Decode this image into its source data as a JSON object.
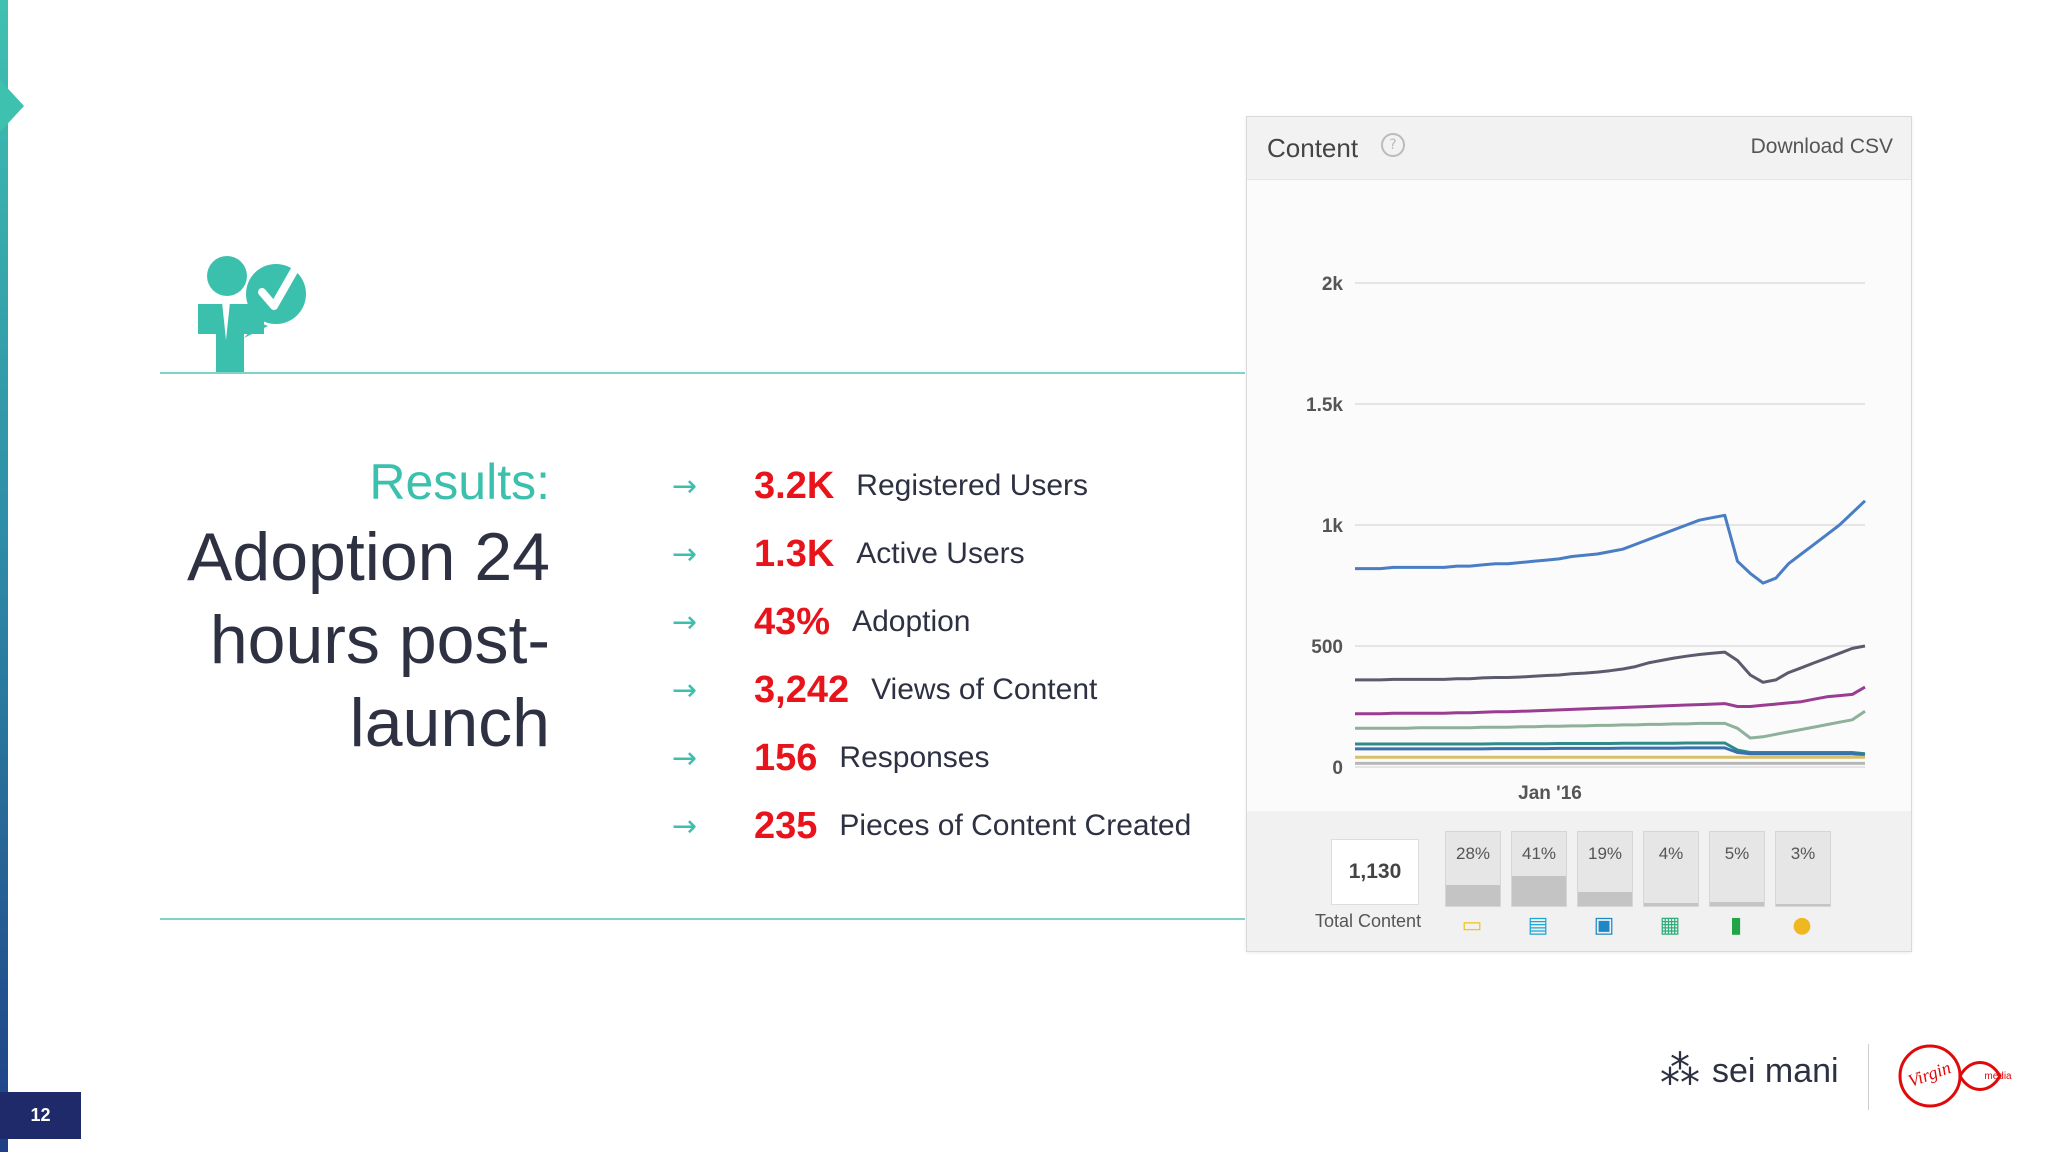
{
  "slide": {
    "page_number": "12",
    "results_label": "Results:",
    "title": "Adoption 24 hours post-launch",
    "colors": {
      "accent": "#3cc0ae",
      "value_red": "#e8141b",
      "text_dark": "#2d3142",
      "page_badge": "#1f2a6b"
    }
  },
  "stats": [
    {
      "value": "3.2K",
      "label": "Registered Users"
    },
    {
      "value": "1.3K",
      "label": "Active Users"
    },
    {
      "value": "43%",
      "label": "Adoption"
    },
    {
      "value": "3,242",
      "label": "Views of Content"
    },
    {
      "value": "156",
      "label": "Responses"
    },
    {
      "value": "235",
      "label": "Pieces of Content Created"
    }
  ],
  "chart_panel": {
    "title": "Content",
    "download_label": "Download CSV",
    "total_value": "1,130",
    "total_label": "Total Content",
    "breakdown": [
      {
        "pct": "28%",
        "value": 28,
        "icon": "clipboard-icon",
        "color": "#f3c614",
        "glyph": "▭"
      },
      {
        "pct": "41%",
        "value": 41,
        "icon": "document-icon",
        "color": "#1fa5d6",
        "glyph": "▤"
      },
      {
        "pct": "19%",
        "value": 19,
        "icon": "discussion-icon",
        "color": "#1e88c7",
        "glyph": "▣"
      },
      {
        "pct": "4%",
        "value": 4,
        "icon": "image-icon",
        "color": "#2fae7a",
        "glyph": "▦"
      },
      {
        "pct": "5%",
        "value": 5,
        "icon": "poll-icon",
        "color": "#23a547",
        "glyph": "▮"
      },
      {
        "pct": "3%",
        "value": 3,
        "icon": "idea-icon",
        "color": "#f0b820",
        "glyph": "●"
      }
    ]
  },
  "chart_data": {
    "type": "line",
    "title": "Content",
    "xlabel": "",
    "ylabel": "",
    "x_tick_labels": [
      "Jan '16"
    ],
    "y_ticks": [
      0,
      500,
      1000,
      1500,
      2000
    ],
    "y_tick_labels": [
      "0",
      "500",
      "1k",
      "1.5k",
      "2k"
    ],
    "ylim": [
      0,
      2000
    ],
    "grid": true,
    "x": [
      0,
      1,
      2,
      3,
      4,
      5,
      6,
      7,
      8,
      9,
      10,
      11,
      12,
      13,
      14,
      15,
      16,
      17,
      18,
      19,
      20,
      21,
      22,
      23,
      24,
      25,
      26,
      27,
      28,
      29,
      30,
      31,
      32,
      33,
      34,
      35,
      36,
      37,
      38,
      39,
      40
    ],
    "series": [
      {
        "color": "#4a7ec4",
        "values": [
          820,
          820,
          820,
          825,
          825,
          825,
          825,
          825,
          830,
          830,
          835,
          840,
          840,
          845,
          850,
          855,
          860,
          870,
          875,
          880,
          890,
          900,
          920,
          940,
          960,
          980,
          1000,
          1020,
          1030,
          1040,
          850,
          800,
          760,
          780,
          840,
          880,
          920,
          960,
          1000,
          1050,
          1100
        ]
      },
      {
        "color": "#5b5b6e",
        "values": [
          360,
          360,
          360,
          362,
          362,
          362,
          362,
          362,
          365,
          365,
          368,
          370,
          370,
          372,
          375,
          378,
          380,
          385,
          388,
          392,
          398,
          405,
          415,
          430,
          440,
          450,
          458,
          465,
          470,
          475,
          440,
          380,
          350,
          360,
          390,
          410,
          430,
          450,
          470,
          490,
          500
        ]
      },
      {
        "color": "#9a3d92",
        "values": [
          220,
          220,
          220,
          222,
          222,
          222,
          222,
          222,
          224,
          224,
          226,
          228,
          228,
          230,
          232,
          234,
          236,
          238,
          240,
          242,
          244,
          246,
          248,
          250,
          252,
          254,
          256,
          258,
          260,
          262,
          250,
          250,
          255,
          260,
          265,
          270,
          280,
          290,
          295,
          300,
          330
        ]
      },
      {
        "color": "#8fb09a",
        "values": [
          160,
          160,
          160,
          160,
          160,
          162,
          162,
          162,
          162,
          162,
          164,
          164,
          164,
          166,
          166,
          168,
          168,
          170,
          170,
          172,
          172,
          174,
          174,
          176,
          176,
          178,
          178,
          180,
          180,
          180,
          160,
          120,
          125,
          135,
          145,
          155,
          165,
          175,
          185,
          195,
          230
        ]
      },
      {
        "color": "#2e8b8a",
        "values": [
          95,
          95,
          95,
          95,
          95,
          95,
          95,
          95,
          95,
          95,
          95,
          96,
          96,
          96,
          96,
          96,
          97,
          97,
          97,
          97,
          97,
          98,
          98,
          98,
          98,
          98,
          99,
          99,
          99,
          99,
          70,
          60,
          60,
          60,
          60,
          60,
          60,
          60,
          60,
          60,
          55
        ]
      },
      {
        "color": "#3a6fb0",
        "values": [
          75,
          75,
          75,
          75,
          75,
          75,
          75,
          75,
          75,
          75,
          75,
          76,
          76,
          76,
          76,
          76,
          77,
          77,
          77,
          77,
          77,
          78,
          78,
          78,
          78,
          78,
          79,
          79,
          79,
          79,
          60,
          55,
          55,
          55,
          55,
          55,
          55,
          55,
          55,
          55,
          50
        ]
      },
      {
        "color": "#d8c06a",
        "values": [
          40,
          40,
          40,
          40,
          40,
          40,
          40,
          40,
          40,
          40,
          40,
          40,
          40,
          40,
          40,
          40,
          40,
          40,
          40,
          40,
          40,
          40,
          40,
          40,
          40,
          40,
          40,
          40,
          40,
          40,
          40,
          40,
          40,
          40,
          40,
          40,
          40,
          40,
          40,
          40,
          40
        ]
      },
      {
        "color": "#b7b7b7",
        "values": [
          15,
          15,
          15,
          15,
          15,
          15,
          15,
          15,
          15,
          15,
          15,
          15,
          15,
          15,
          15,
          15,
          15,
          15,
          15,
          15,
          15,
          15,
          15,
          15,
          15,
          15,
          15,
          15,
          15,
          15,
          15,
          15,
          15,
          15,
          15,
          15,
          15,
          15,
          15,
          15,
          15
        ]
      }
    ]
  },
  "brands": {
    "seimani": "sei mani",
    "virgin": "Virgin",
    "virgin_sub": "media"
  }
}
